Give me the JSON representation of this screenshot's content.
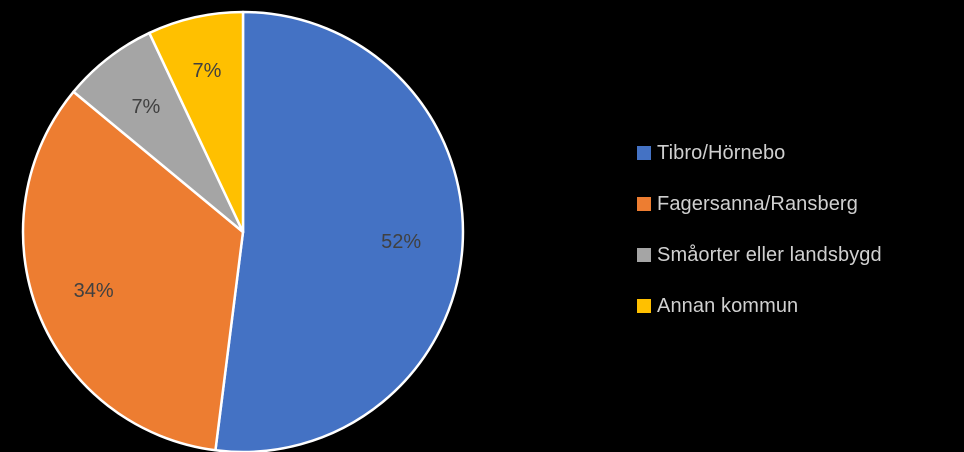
{
  "chart_data": {
    "type": "pie",
    "title": "",
    "start_angle_deg": 0,
    "direction": "clockwise",
    "legend_position": "right",
    "slices": [
      {
        "name": "Tibro/Hörnebo",
        "value": 52,
        "label": "52%",
        "color": "#4472C4"
      },
      {
        "name": "Fagersanna/Ransberg",
        "value": 34,
        "label": "34%",
        "color": "#ED7D31"
      },
      {
        "name": "Småorter eller landsbygd",
        "value": 7,
        "label": "7%",
        "color": "#A5A5A5"
      },
      {
        "name": "Annan kommun",
        "value": 7,
        "label": "7%",
        "color": "#FFC000"
      }
    ]
  }
}
